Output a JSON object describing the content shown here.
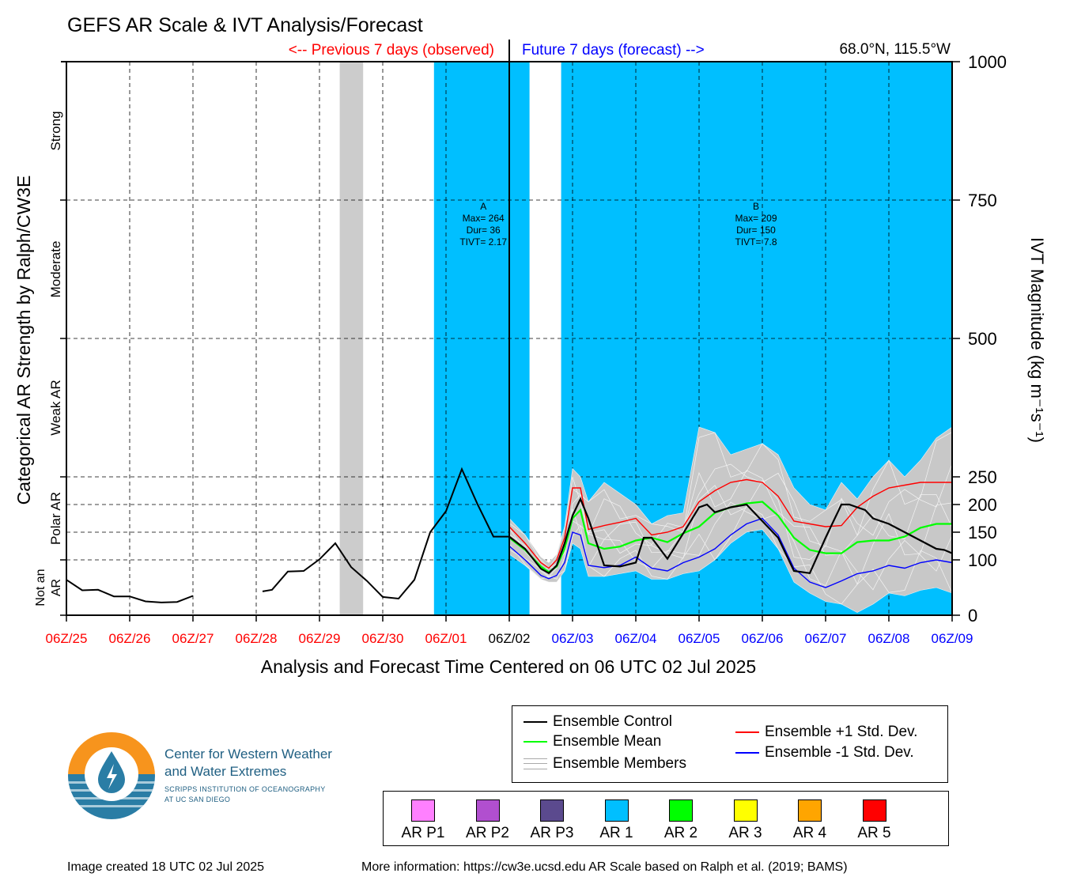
{
  "title": "GEFS AR Scale & IVT Analysis/Forecast",
  "prev_label": "<-- Previous 7 days (observed)",
  "future_label": "Future 7 days (forecast) -->",
  "location": "68.0°N, 115.5°W",
  "xlabel": "Analysis and Forecast Time Centered on 06 UTC 02 Jul 2025",
  "ylabel_left": "Categorical AR Strength by Ralph/CW3E",
  "ylabel_right": "IVT Magnitude (kg m⁻¹s⁻¹)",
  "colors": {
    "observed": "#ff0000",
    "forecast": "#0000ff",
    "now": "#000000",
    "ar1": "#00bfff",
    "gray_band": "#cccccc",
    "control": "#000000",
    "mean": "#00ff00",
    "plus_sd": "#ff0000",
    "minus_sd": "#0000ff",
    "members": "#aaaaaa"
  },
  "chart_data": {
    "type": "line",
    "ylim": [
      0,
      1000
    ],
    "yticks": [
      0,
      100,
      150,
      200,
      250,
      500,
      750,
      1000
    ],
    "xlim_days": [
      -7,
      7
    ],
    "xticks": [
      {
        "label": "06Z/25",
        "day": -7,
        "kind": "observed"
      },
      {
        "label": "06Z/26",
        "day": -6,
        "kind": "observed"
      },
      {
        "label": "06Z/27",
        "day": -5,
        "kind": "observed"
      },
      {
        "label": "06Z/28",
        "day": -4,
        "kind": "observed"
      },
      {
        "label": "06Z/29",
        "day": -3,
        "kind": "observed"
      },
      {
        "label": "06Z/30",
        "day": -2,
        "kind": "observed"
      },
      {
        "label": "06Z/01",
        "day": -1,
        "kind": "observed"
      },
      {
        "label": "06Z/02",
        "day": 0,
        "kind": "now"
      },
      {
        "label": "06Z/03",
        "day": 1,
        "kind": "forecast"
      },
      {
        "label": "06Z/04",
        "day": 2,
        "kind": "forecast"
      },
      {
        "label": "06Z/05",
        "day": 3,
        "kind": "forecast"
      },
      {
        "label": "06Z/06",
        "day": 4,
        "kind": "forecast"
      },
      {
        "label": "06Z/07",
        "day": 5,
        "kind": "forecast"
      },
      {
        "label": "06Z/08",
        "day": 6,
        "kind": "forecast"
      },
      {
        "label": "06Z/09",
        "day": 7,
        "kind": "forecast"
      }
    ],
    "categories": [
      {
        "label": "Not an AR",
        "from": 0,
        "to": 100
      },
      {
        "label": "Polar AR",
        "from": 100,
        "to": 250
      },
      {
        "label": "Weak AR",
        "from": 250,
        "to": 500
      },
      {
        "label": "Moderate",
        "from": 500,
        "to": 750
      },
      {
        "label": "Strong",
        "from": 750,
        "to": 1000
      }
    ],
    "shading": [
      {
        "kind": "gray_band",
        "start_day": -2.68,
        "end_day": -2.31
      },
      {
        "kind": "ar1",
        "start_day": -1.19,
        "end_day": 0.32
      },
      {
        "kind": "ar1",
        "start_day": 0.82,
        "end_day": 7.0
      }
    ],
    "events": [
      {
        "day": -0.41,
        "lines": [
          "A",
          "Max= 264",
          "Dur= 36",
          "TIVT= 2.17"
        ]
      },
      {
        "day": 3.9,
        "lines": [
          "B",
          "Max= 209",
          "Dur= 150",
          "TIVT= 7.8"
        ]
      }
    ],
    "observed_series": {
      "name": "observed",
      "segments": [
        {
          "x": [
            -7,
            -6.75,
            -6.5,
            -6.25,
            -6,
            -5.75,
            -5.5,
            -5.25,
            -5
          ],
          "y": [
            64,
            45,
            46,
            34,
            34,
            25,
            23,
            24,
            35
          ]
        },
        {
          "x": [
            -3.9,
            -3.75,
            -3.5,
            -3.25,
            -3,
            -2.75,
            -2.5,
            -2.25,
            -2,
            -1.75,
            -1.5,
            -1.25,
            -1,
            -0.75,
            -0.5,
            -0.25,
            0
          ],
          "y": [
            43,
            46,
            79,
            80,
            101,
            130,
            87,
            62,
            33,
            30,
            64,
            150,
            188,
            264,
            200,
            142,
            142
          ]
        }
      ]
    },
    "series": [
      {
        "name": "Ensemble Control",
        "x": [
          0,
          0.25,
          0.5,
          0.625,
          0.75,
          0.875,
          1,
          1.125,
          1.25,
          1.5,
          1.75,
          2,
          2.125,
          2.25,
          2.5,
          2.75,
          3,
          3.125,
          3.25,
          3.5,
          3.75,
          4,
          4.25,
          4.5,
          4.75,
          5,
          5.25,
          5.375,
          5.5,
          5.625,
          5.75,
          6,
          6.25,
          6.5,
          6.75,
          6.875,
          7
        ],
        "y": [
          142,
          120,
          84,
          76,
          90,
          130,
          180,
          210,
          175,
          90,
          88,
          95,
          140,
          140,
          102,
          148,
          195,
          200,
          186,
          195,
          200,
          170,
          140,
          80,
          76,
          140,
          200,
          200,
          195,
          190,
          175,
          165,
          150,
          135,
          120,
          118,
          112
        ]
      },
      {
        "name": "Ensemble Mean",
        "x": [
          0,
          0.25,
          0.5,
          0.625,
          0.75,
          0.875,
          1,
          1.125,
          1.25,
          1.5,
          1.75,
          2,
          2.25,
          2.5,
          2.75,
          3,
          3.25,
          3.5,
          3.75,
          4,
          4.25,
          4.5,
          4.75,
          5,
          5.25,
          5.5,
          5.75,
          6,
          6.25,
          6.5,
          6.75,
          7
        ],
        "y": [
          140,
          118,
          88,
          78,
          88,
          120,
          175,
          190,
          130,
          120,
          124,
          135,
          140,
          132,
          148,
          160,
          185,
          195,
          202,
          205,
          180,
          140,
          118,
          112,
          112,
          132,
          135,
          135,
          142,
          158,
          165,
          165
        ]
      },
      {
        "name": "Ensemble +1 Std. Dev.",
        "x": [
          0,
          0.25,
          0.5,
          0.625,
          0.75,
          0.875,
          1,
          1.125,
          1.25,
          1.5,
          1.75,
          2,
          2.25,
          2.5,
          2.75,
          3,
          3.25,
          3.5,
          3.75,
          4,
          4.25,
          4.5,
          4.75,
          5,
          5.25,
          5.5,
          5.75,
          6,
          6.25,
          6.5,
          6.75,
          7
        ],
        "y": [
          160,
          130,
          95,
          85,
          100,
          140,
          230,
          230,
          155,
          162,
          168,
          175,
          145,
          150,
          160,
          205,
          225,
          240,
          245,
          240,
          215,
          170,
          165,
          160,
          162,
          195,
          215,
          230,
          235,
          240,
          240,
          240
        ]
      },
      {
        "name": "Ensemble -1 Std. Dev.",
        "x": [
          0,
          0.25,
          0.5,
          0.625,
          0.75,
          0.875,
          1,
          1.125,
          1.25,
          1.5,
          1.75,
          2,
          2.25,
          2.5,
          2.75,
          3,
          3.25,
          3.5,
          3.75,
          4,
          4.25,
          4.5,
          4.75,
          5,
          5.25,
          5.5,
          5.75,
          6,
          6.25,
          6.5,
          6.75,
          7
        ],
        "y": [
          125,
          100,
          72,
          66,
          72,
          95,
          150,
          145,
          90,
          86,
          90,
          105,
          85,
          80,
          95,
          105,
          120,
          145,
          165,
          175,
          145,
          85,
          60,
          50,
          62,
          75,
          80,
          90,
          85,
          95,
          100,
          95
        ]
      }
    ],
    "members_envelope": {
      "x": [
        0,
        0.25,
        0.5,
        0.625,
        0.75,
        0.875,
        1,
        1.125,
        1.25,
        1.5,
        1.75,
        2,
        2.25,
        2.5,
        2.75,
        3,
        3.25,
        3.5,
        3.75,
        4,
        4.25,
        4.5,
        4.75,
        5,
        5.25,
        5.5,
        5.75,
        6,
        6.25,
        6.5,
        6.75,
        7
      ],
      "upper": [
        175,
        145,
        105,
        95,
        110,
        160,
        265,
        250,
        205,
        240,
        220,
        200,
        165,
        180,
        185,
        340,
        330,
        290,
        300,
        310,
        290,
        230,
        200,
        190,
        240,
        210,
        250,
        280,
        250,
        280,
        320,
        340
      ],
      "lower": [
        110,
        90,
        65,
        60,
        60,
        80,
        130,
        120,
        70,
        70,
        75,
        80,
        65,
        65,
        75,
        80,
        100,
        130,
        150,
        155,
        120,
        60,
        40,
        25,
        20,
        5,
        20,
        40,
        35,
        45,
        50,
        40
      ]
    }
  },
  "legend": {
    "control": "Ensemble Control",
    "mean": "Ensemble Mean",
    "members": "Ensemble Members",
    "plus_sd": "Ensemble +1 Std. Dev.",
    "minus_sd": "Ensemble -1 Std. Dev."
  },
  "ar_categories": [
    {
      "label": "AR P1",
      "color": "#ff80ff"
    },
    {
      "label": "AR P2",
      "color": "#b14fcf"
    },
    {
      "label": "AR P3",
      "color": "#5b4a8e"
    },
    {
      "label": "AR 1",
      "color": "#00bfff"
    },
    {
      "label": "AR 2",
      "color": "#00ff00"
    },
    {
      "label": "AR 3",
      "color": "#ffff00"
    },
    {
      "label": "AR 4",
      "color": "#ffa500"
    },
    {
      "label": "AR 5",
      "color": "#ff0000"
    }
  ],
  "logo": {
    "line1": "Center for Western Weather",
    "line2": "and Water Extremes",
    "line3": "SCRIPPS INSTITUTION OF OCEANOGRAPHY",
    "line4": "AT UC SAN DIEGO"
  },
  "footer": {
    "created": "Image created 18 UTC 02 Jul 2025",
    "info": "More information: https://cw3e.ucsd.edu AR Scale based on Ralph et al. (2019; BAMS)"
  }
}
